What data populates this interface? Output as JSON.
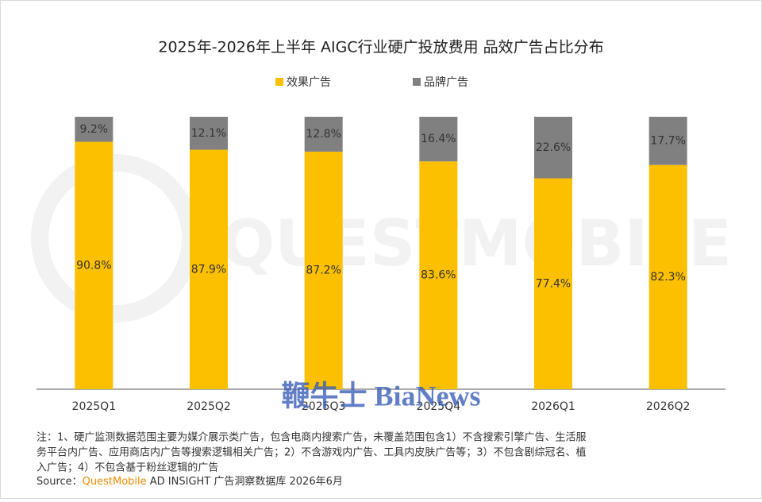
{
  "chart_data": {
    "type": "stacked_bar",
    "title": "2025年-2026年上半年 AIGC行业硬广投放费用 品效广告占比分布",
    "categories": [
      "2025Q1",
      "2025Q2",
      "2025Q3",
      "2025Q4",
      "2026Q1",
      "2026Q2"
    ],
    "series": [
      {
        "name": "效果广告",
        "color": "#fcc000",
        "values": [
          90.8,
          87.9,
          87.2,
          83.6,
          77.4,
          82.3
        ],
        "value_labels": [
          "90.8%",
          "87.9%",
          "87.2%",
          "83.6%",
          "77.4%",
          "82.3%"
        ]
      },
      {
        "name": "品牌广告",
        "color": "#808080",
        "values": [
          9.2,
          12.1,
          12.8,
          16.4,
          22.6,
          17.7
        ],
        "value_labels": [
          "9.2%",
          "12.1%",
          "12.8%",
          "16.4%",
          "22.6%",
          "17.7%"
        ]
      }
    ],
    "ylim": [
      0,
      100
    ],
    "legend": "top",
    "note_lines": [
      "注：1、硬广监测数据范围主要为媒介展示类广告，包含电商内搜索广告，未覆盖范围包含1）不含搜索引擎广告、生活服",
      "务平台内广告、应用商店内广告等搜索逻辑相关广告；2）不含游戏内广告、工具内皮肤广告等；3）不包含剧综冠名、植",
      "入广告；4）不包含基于粉丝逻辑的广告"
    ],
    "source": {
      "label": "Source：",
      "brand": "QuestMobile",
      "text": " AD INSIGHT 广告洞察数据库 2026年6月"
    },
    "watermarks": [
      "QUESTMOBILE",
      "鞭牛士 BiaNews"
    ]
  }
}
